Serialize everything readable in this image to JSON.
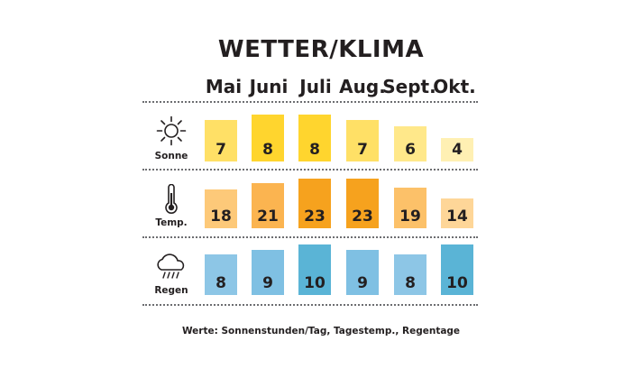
{
  "title": "WETTER/KLIMA",
  "months": [
    "Mai",
    "Juni",
    "Juli",
    "Aug.",
    "Sept.",
    "Okt."
  ],
  "footer": "Werte: Sonnenstunden/Tag, Tagestemp., Regentage",
  "chart_data": [
    {
      "type": "bar",
      "label": "Sonne",
      "icon": "sun-icon",
      "categories": [
        "Mai",
        "Juni",
        "Juli",
        "Aug.",
        "Sept.",
        "Okt."
      ],
      "values": [
        7,
        8,
        8,
        7,
        6,
        4
      ],
      "colors": [
        "#ffe066",
        "#ffd52e",
        "#ffd52e",
        "#ffe066",
        "#ffe88a",
        "#fff0b3"
      ]
    },
    {
      "type": "bar",
      "label": "Temp.",
      "icon": "thermometer-icon",
      "categories": [
        "Mai",
        "Juni",
        "Juli",
        "Aug.",
        "Sept.",
        "Okt."
      ],
      "values": [
        18,
        21,
        23,
        23,
        19,
        14
      ],
      "colors": [
        "#fdc979",
        "#fbb450",
        "#f6a21e",
        "#f6a21e",
        "#fcc169",
        "#fed698"
      ]
    },
    {
      "type": "bar",
      "label": "Regen",
      "icon": "rain-cloud-icon",
      "categories": [
        "Mai",
        "Juni",
        "Juli",
        "Aug.",
        "Sept.",
        "Okt."
      ],
      "values": [
        8,
        9,
        10,
        9,
        8,
        10
      ],
      "colors": [
        "#8dc6e6",
        "#7fc0e3",
        "#5ab4d6",
        "#7fc0e3",
        "#8dc6e6",
        "#5ab4d6"
      ]
    }
  ]
}
